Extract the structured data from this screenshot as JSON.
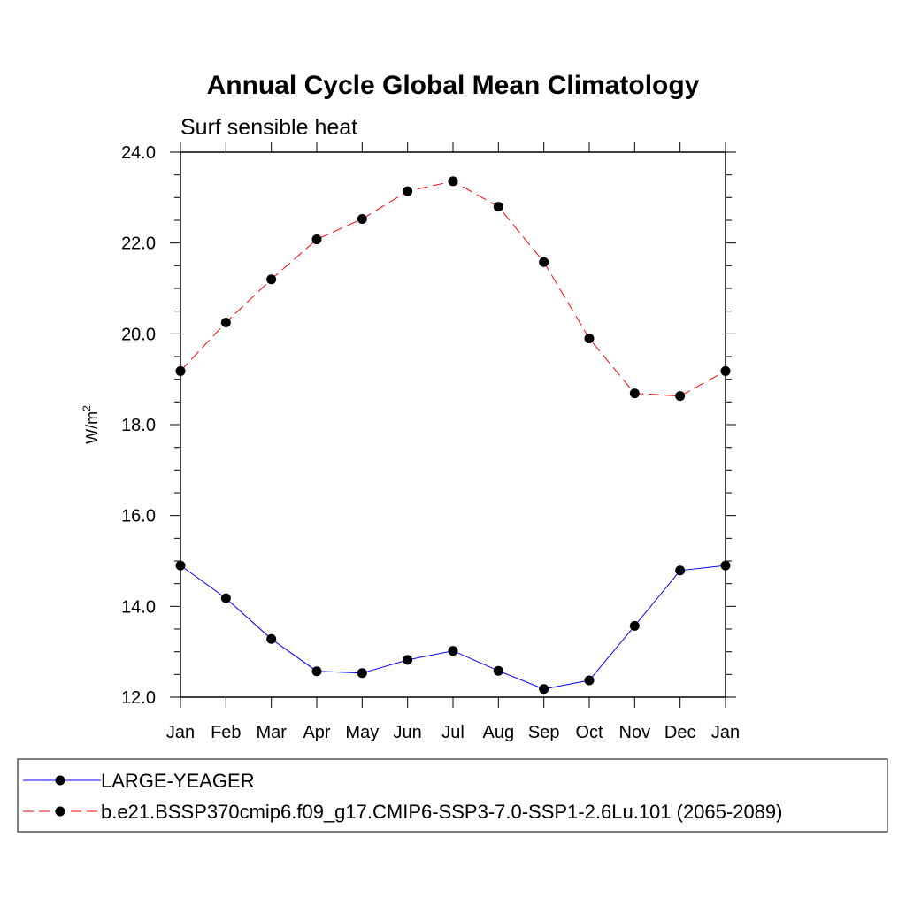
{
  "chart_data": {
    "type": "line",
    "title": "Annual Cycle Global Mean Climatology",
    "subtitle": "Surf sensible heat",
    "ylabel": "W/m",
    "ylabel_superscript": "2",
    "categories": [
      "Jan",
      "Feb",
      "Mar",
      "Apr",
      "May",
      "Jun",
      "Jul",
      "Aug",
      "Sep",
      "Oct",
      "Nov",
      "Dec",
      "Jan"
    ],
    "ylim": [
      12.0,
      24.0
    ],
    "yticks": [
      "12.0",
      "14.0",
      "16.0",
      "18.0",
      "20.0",
      "22.0",
      "24.0"
    ],
    "legend_position": "bottom",
    "grid": false,
    "series": [
      {
        "name": "LARGE-YEAGER",
        "color": "#0000ff",
        "dash": "solid",
        "values": [
          14.9,
          14.18,
          13.28,
          12.57,
          12.53,
          12.82,
          13.02,
          12.58,
          12.18,
          12.37,
          13.57,
          14.79,
          14.9
        ]
      },
      {
        "name": "b.e21.BSSP370cmip6.f09_g17.CMIP6-SSP3-7.0-SSP1-2.6Lu.101 (2065-2089)",
        "color": "#ff0000",
        "dash": "dashed",
        "values": [
          19.18,
          20.25,
          21.2,
          22.08,
          22.53,
          23.14,
          23.36,
          22.8,
          21.58,
          19.9,
          18.69,
          18.63,
          19.18
        ]
      }
    ]
  }
}
